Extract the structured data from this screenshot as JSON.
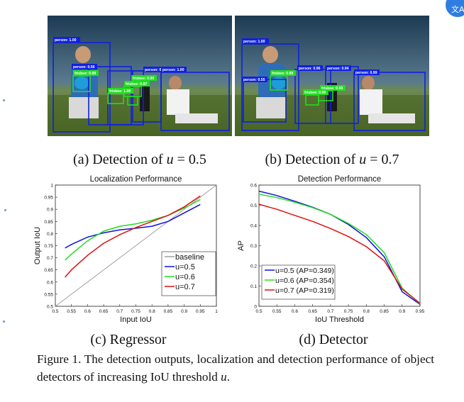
{
  "photos": [
    {
      "labels": [
        "person: 1.00",
        "person: 0.56",
        "person: 0.99",
        "frisbee: 0.99",
        "frisbee: 1.00",
        "frisbee: 0.97",
        "frisbee: 0.99",
        "person: 1.00"
      ],
      "caption_prefix": "(a) Detection of ",
      "caption_var": "u",
      "caption_suffix": " = 0.5"
    },
    {
      "labels": [
        "person: 1.00",
        "person: 0.55",
        "person: 0.96",
        "person: 0.94",
        "person: 0.99",
        "frisbee: 0.99",
        "frisbee: 0.99",
        "frisbee: 0.99"
      ],
      "caption_prefix": "(b) Detection of ",
      "caption_var": "u",
      "caption_suffix": " = 0.7"
    }
  ],
  "chart_data": [
    {
      "type": "line",
      "title": "Localization Performance",
      "xlabel": "Input IoU",
      "ylabel": "Output IoU",
      "xlim": [
        0.5,
        1.0
      ],
      "ylim": [
        0.5,
        1.0
      ],
      "xticks": [
        "0.5",
        "0.55",
        "0.6",
        "0.65",
        "0.7",
        "0.75",
        "0.8",
        "0.85",
        "0.9",
        "0.95",
        "1"
      ],
      "yticks": [
        "0.5",
        "0.55",
        "0.6",
        "0.65",
        "0.7",
        "0.75",
        "0.8",
        "0.85",
        "0.9",
        "0.95",
        "1"
      ],
      "legend_position": "bottom-right",
      "series": [
        {
          "name": "baseline",
          "color": "#a0a0a0",
          "x": [
            0.5,
            1.0
          ],
          "y": [
            0.5,
            1.0
          ]
        },
        {
          "name": "u=0.5",
          "color": "#1010dd",
          "x": [
            0.53,
            0.55,
            0.6,
            0.65,
            0.7,
            0.75,
            0.8,
            0.85,
            0.9,
            0.95
          ],
          "y": [
            0.74,
            0.755,
            0.785,
            0.803,
            0.815,
            0.822,
            0.83,
            0.85,
            0.885,
            0.92
          ]
        },
        {
          "name": "u=0.6",
          "color": "#22dd22",
          "x": [
            0.53,
            0.55,
            0.6,
            0.65,
            0.7,
            0.75,
            0.8,
            0.85,
            0.9,
            0.95
          ],
          "y": [
            0.69,
            0.715,
            0.77,
            0.81,
            0.83,
            0.84,
            0.855,
            0.875,
            0.905,
            0.94
          ]
        },
        {
          "name": "u=0.7",
          "color": "#dd1111",
          "x": [
            0.53,
            0.55,
            0.6,
            0.65,
            0.7,
            0.75,
            0.8,
            0.85,
            0.9,
            0.95
          ],
          "y": [
            0.62,
            0.65,
            0.71,
            0.76,
            0.795,
            0.825,
            0.85,
            0.875,
            0.91,
            0.955
          ]
        }
      ],
      "caption": "(c) Regressor"
    },
    {
      "type": "line",
      "title": "Detection Performance",
      "xlabel": "IoU Threshold",
      "ylabel": "AP",
      "xlim": [
        0.5,
        0.95
      ],
      "ylim": [
        0,
        0.6
      ],
      "xticks": [
        "0.5",
        "0.55",
        "0.6",
        "0.65",
        "0.7",
        "0.75",
        "0.8",
        "0.85",
        "0.9",
        "0.95"
      ],
      "yticks": [
        "0",
        "0.1",
        "0.2",
        "0.3",
        "0.4",
        "0.5",
        "0.6"
      ],
      "legend_position": "bottom-left",
      "series": [
        {
          "name": "u=0.5 (AP=0.349)",
          "color": "#1010dd",
          "x": [
            0.5,
            0.55,
            0.6,
            0.65,
            0.7,
            0.75,
            0.8,
            0.85,
            0.9,
            0.95
          ],
          "y": [
            0.57,
            0.548,
            0.52,
            0.49,
            0.455,
            0.405,
            0.34,
            0.245,
            0.072,
            0.01
          ]
        },
        {
          "name": "u=0.6 (AP=0.354)",
          "color": "#22dd22",
          "x": [
            0.5,
            0.55,
            0.6,
            0.65,
            0.7,
            0.75,
            0.8,
            0.85,
            0.9,
            0.95
          ],
          "y": [
            0.555,
            0.538,
            0.515,
            0.488,
            0.455,
            0.41,
            0.355,
            0.265,
            0.09,
            0.012
          ]
        },
        {
          "name": "u=0.7 (AP=0.319)",
          "color": "#dd1111",
          "x": [
            0.5,
            0.55,
            0.6,
            0.65,
            0.7,
            0.75,
            0.8,
            0.85,
            0.9,
            0.95
          ],
          "y": [
            0.505,
            0.48,
            0.45,
            0.42,
            0.385,
            0.345,
            0.295,
            0.225,
            0.085,
            0.015
          ]
        }
      ],
      "caption": "(d) Detector"
    }
  ],
  "figure_caption_main": "Figure 1. The detection outputs, localization and detection performance of object detectors of increasing IoU threshold ",
  "figure_caption_var": "u",
  "figure_caption_end": "."
}
